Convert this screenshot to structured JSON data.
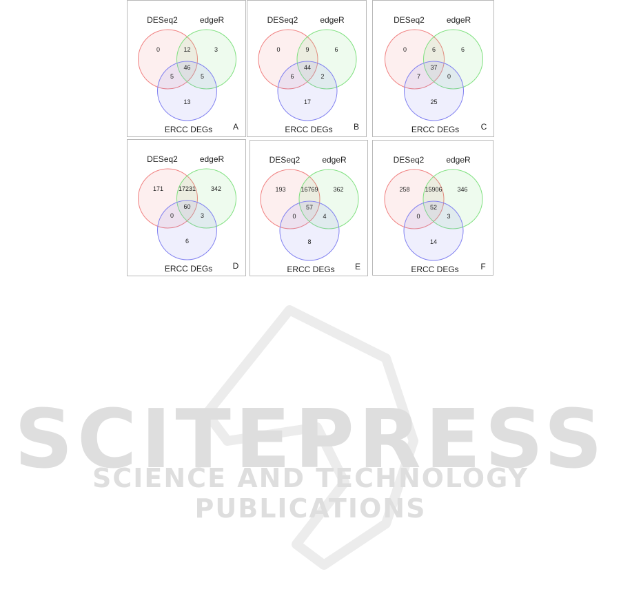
{
  "figure": {
    "set_labels": {
      "a": "DESeq2",
      "b": "edgeR",
      "c": "ERCC DEGs"
    },
    "colors": {
      "a": "#f08080",
      "b": "#7fe07f",
      "c": "#8080f0"
    },
    "panels": [
      {
        "letter": "A",
        "a_only": "0",
        "ab": "12",
        "b_only": "3",
        "abc": "46",
        "ac": "5",
        "bc": "5",
        "c_only": "13"
      },
      {
        "letter": "B",
        "a_only": "0",
        "ab": "9",
        "b_only": "6",
        "abc": "44",
        "ac": "6",
        "bc": "2",
        "c_only": "17"
      },
      {
        "letter": "C",
        "a_only": "0",
        "ab": "6",
        "b_only": "6",
        "abc": "37",
        "ac": "7",
        "bc": "0",
        "c_only": "25"
      },
      {
        "letter": "D",
        "a_only": "171",
        "ab": "17231",
        "b_only": "342",
        "abc": "60",
        "ac": "0",
        "bc": "3",
        "c_only": "6"
      },
      {
        "letter": "E",
        "a_only": "193",
        "ab": "16769",
        "b_only": "362",
        "abc": "57",
        "ac": "0",
        "bc": "4",
        "c_only": "8"
      },
      {
        "letter": "F",
        "a_only": "258",
        "ab": "15906",
        "b_only": "346",
        "abc": "52",
        "ac": "0",
        "bc": "3",
        "c_only": "14"
      }
    ]
  },
  "watermark": {
    "title": "SCITEPRESS",
    "subtitle": "SCIENCE AND TECHNOLOGY PUBLICATIONS"
  }
}
